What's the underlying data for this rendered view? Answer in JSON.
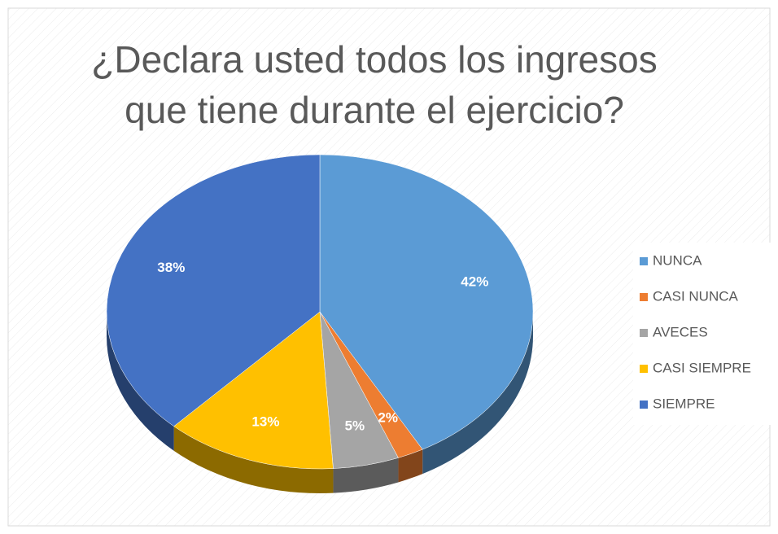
{
  "chart_data": {
    "type": "pie",
    "title": "¿Declara usted todos los ingresos que tiene durante el ejercicio?",
    "categories": [
      "NUNCA",
      "CASI NUNCA",
      "AVECES",
      "CASI SIEMPRE",
      "SIEMPRE"
    ],
    "values": [
      42,
      2,
      5,
      13,
      38
    ],
    "value_labels": [
      "42%",
      "2%",
      "5%",
      "13%",
      "38%"
    ],
    "colors": [
      "#5b9bd5",
      "#ed7d31",
      "#a5a5a5",
      "#ffc000",
      "#4472c4"
    ],
    "legend": "right"
  }
}
